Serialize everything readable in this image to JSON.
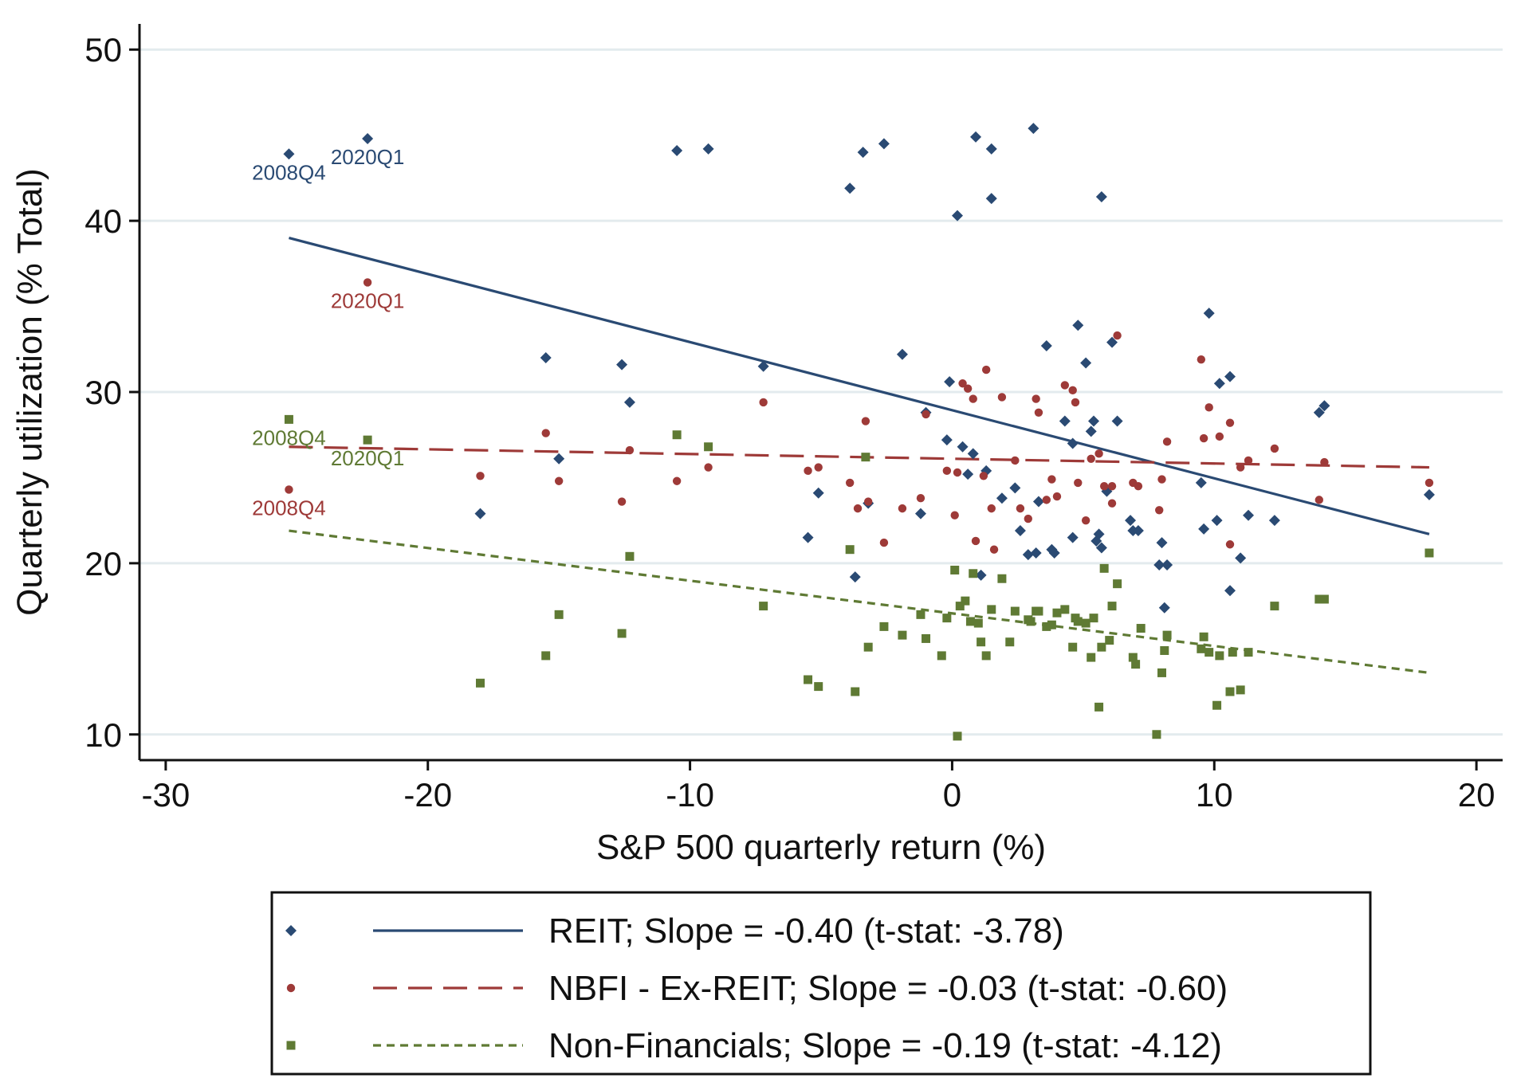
{
  "chart_data": {
    "type": "scatter",
    "xlabel": "S&P 500 quarterly return (%)",
    "ylabel": "Quarterly utilization (% Total)",
    "xlim": [
      -31,
      21
    ],
    "ylim": [
      8.5,
      51.5
    ],
    "xticks": [
      -30,
      -20,
      -10,
      0,
      10,
      20
    ],
    "yticks": [
      10,
      20,
      30,
      40,
      50
    ],
    "grid": "horizontal",
    "legend_position": "bottom",
    "series": [
      {
        "name": "REIT",
        "legend_label": "REIT; Slope = -0.40 (t-stat: -3.78)",
        "marker": "diamond",
        "color": "#2a4a73",
        "line_style": "solid",
        "fit_line": [
          [
            -25.3,
            39.0
          ],
          [
            18.2,
            21.7
          ]
        ],
        "points": [
          [
            -25.3,
            43.9
          ],
          [
            -22.3,
            44.8
          ],
          [
            -10.5,
            44.1
          ],
          [
            -9.3,
            44.2
          ],
          [
            -3.4,
            44.0
          ],
          [
            -2.6,
            44.5
          ],
          [
            0.9,
            44.9
          ],
          [
            1.5,
            44.2
          ],
          [
            3.1,
            45.4
          ],
          [
            -3.9,
            41.9
          ],
          [
            0.2,
            40.3
          ],
          [
            1.5,
            41.3
          ],
          [
            5.7,
            41.4
          ],
          [
            -15.5,
            32.0
          ],
          [
            -12.6,
            31.6
          ],
          [
            -12.3,
            29.4
          ],
          [
            -7.2,
            31.5
          ],
          [
            -1.9,
            32.2
          ],
          [
            -18.0,
            22.9
          ],
          [
            -15.0,
            26.1
          ],
          [
            -5.5,
            21.5
          ],
          [
            -5.1,
            24.1
          ],
          [
            -3.7,
            19.2
          ],
          [
            -3.2,
            23.5
          ],
          [
            -1.2,
            22.9
          ],
          [
            -1.0,
            28.8
          ],
          [
            -0.2,
            27.2
          ],
          [
            -0.1,
            30.6
          ],
          [
            0.4,
            26.8
          ],
          [
            0.6,
            25.2
          ],
          [
            0.8,
            26.4
          ],
          [
            1.1,
            19.3
          ],
          [
            1.3,
            25.4
          ],
          [
            1.9,
            23.8
          ],
          [
            2.4,
            24.4
          ],
          [
            2.6,
            21.9
          ],
          [
            2.9,
            20.5
          ],
          [
            3.2,
            20.6
          ],
          [
            3.3,
            23.6
          ],
          [
            3.6,
            32.7
          ],
          [
            3.8,
            20.8
          ],
          [
            3.9,
            20.6
          ],
          [
            4.3,
            28.3
          ],
          [
            4.6,
            27.0
          ],
          [
            4.6,
            21.5
          ],
          [
            4.8,
            33.9
          ],
          [
            5.1,
            31.7
          ],
          [
            5.3,
            27.7
          ],
          [
            5.4,
            28.3
          ],
          [
            5.5,
            21.3
          ],
          [
            5.6,
            21.7
          ],
          [
            5.7,
            20.9
          ],
          [
            5.9,
            24.2
          ],
          [
            6.1,
            32.9
          ],
          [
            6.3,
            28.3
          ],
          [
            6.8,
            22.5
          ],
          [
            6.9,
            21.9
          ],
          [
            7.1,
            21.9
          ],
          [
            7.9,
            19.9
          ],
          [
            8.0,
            21.2
          ],
          [
            8.2,
            19.9
          ],
          [
            8.1,
            17.4
          ],
          [
            9.5,
            24.7
          ],
          [
            9.6,
            22.0
          ],
          [
            9.8,
            34.6
          ],
          [
            10.1,
            22.5
          ],
          [
            10.2,
            30.5
          ],
          [
            10.6,
            30.9
          ],
          [
            10.6,
            18.4
          ],
          [
            11.0,
            20.3
          ],
          [
            11.3,
            22.8
          ],
          [
            12.3,
            22.5
          ],
          [
            14.0,
            28.8
          ],
          [
            14.2,
            29.2
          ],
          [
            18.2,
            24.0
          ]
        ]
      },
      {
        "name": "NBFI - Ex-REIT",
        "legend_label": "NBFI - Ex-REIT; Slope = -0.03 (t-stat: -0.60)",
        "marker": "circle",
        "color": "#9e3a38",
        "line_style": "dashed",
        "fit_line": [
          [
            -25.3,
            26.8
          ],
          [
            18.2,
            25.6
          ]
        ],
        "points": [
          [
            -22.3,
            36.4
          ],
          [
            -25.3,
            24.3
          ],
          [
            -18.0,
            25.1
          ],
          [
            -15.5,
            27.6
          ],
          [
            -15.0,
            24.8
          ],
          [
            -12.6,
            23.6
          ],
          [
            -12.3,
            26.6
          ],
          [
            -10.5,
            24.8
          ],
          [
            -9.3,
            25.6
          ],
          [
            -7.2,
            29.4
          ],
          [
            -5.5,
            25.4
          ],
          [
            -5.1,
            25.6
          ],
          [
            -3.9,
            24.7
          ],
          [
            -3.6,
            23.2
          ],
          [
            -3.3,
            28.3
          ],
          [
            -3.2,
            23.6
          ],
          [
            -2.6,
            21.2
          ],
          [
            -1.9,
            23.2
          ],
          [
            -1.2,
            23.8
          ],
          [
            -1.0,
            28.7
          ],
          [
            -0.2,
            25.4
          ],
          [
            0.1,
            22.8
          ],
          [
            0.2,
            25.3
          ],
          [
            0.4,
            30.5
          ],
          [
            0.6,
            30.2
          ],
          [
            0.8,
            29.6
          ],
          [
            0.9,
            21.3
          ],
          [
            1.2,
            25.1
          ],
          [
            1.3,
            31.3
          ],
          [
            1.5,
            23.2
          ],
          [
            1.6,
            20.8
          ],
          [
            1.9,
            29.7
          ],
          [
            2.4,
            26.0
          ],
          [
            2.6,
            23.2
          ],
          [
            2.9,
            22.6
          ],
          [
            3.2,
            29.6
          ],
          [
            3.3,
            28.8
          ],
          [
            3.6,
            23.7
          ],
          [
            3.8,
            24.9
          ],
          [
            4.0,
            23.9
          ],
          [
            4.3,
            30.4
          ],
          [
            4.6,
            30.1
          ],
          [
            4.7,
            29.4
          ],
          [
            4.8,
            24.7
          ],
          [
            5.1,
            22.5
          ],
          [
            5.3,
            26.1
          ],
          [
            5.6,
            26.4
          ],
          [
            5.8,
            24.5
          ],
          [
            6.1,
            24.5
          ],
          [
            6.3,
            33.3
          ],
          [
            6.1,
            23.5
          ],
          [
            6.9,
            24.7
          ],
          [
            7.1,
            24.5
          ],
          [
            7.9,
            23.1
          ],
          [
            8.0,
            24.9
          ],
          [
            8.2,
            27.1
          ],
          [
            9.5,
            31.9
          ],
          [
            9.6,
            27.3
          ],
          [
            9.8,
            29.1
          ],
          [
            10.2,
            27.4
          ],
          [
            10.6,
            28.2
          ],
          [
            10.6,
            21.1
          ],
          [
            11.0,
            25.6
          ],
          [
            11.3,
            26.0
          ],
          [
            12.3,
            26.7
          ],
          [
            14.0,
            23.7
          ],
          [
            14.2,
            25.9
          ],
          [
            18.2,
            24.7
          ]
        ]
      },
      {
        "name": "Non-Financials",
        "legend_label": "Non-Financials; Slope = -0.19 (t-stat: -4.12)",
        "marker": "square",
        "color": "#5f7a34",
        "line_style": "dotted",
        "fit_line": [
          [
            -25.3,
            21.9
          ],
          [
            18.2,
            13.6
          ]
        ],
        "points": [
          [
            -25.3,
            28.4
          ],
          [
            -22.3,
            27.2
          ],
          [
            -18.0,
            13.0
          ],
          [
            -15.5,
            14.6
          ],
          [
            -15.0,
            17.0
          ],
          [
            -12.6,
            15.9
          ],
          [
            -12.3,
            20.4
          ],
          [
            -10.5,
            27.5
          ],
          [
            -9.3,
            26.8
          ],
          [
            -7.2,
            17.5
          ],
          [
            -5.5,
            13.2
          ],
          [
            -5.1,
            12.8
          ],
          [
            -3.9,
            20.8
          ],
          [
            -3.7,
            12.5
          ],
          [
            -3.3,
            26.2
          ],
          [
            -3.2,
            15.1
          ],
          [
            -2.6,
            16.3
          ],
          [
            -1.9,
            15.8
          ],
          [
            -1.2,
            17.0
          ],
          [
            -1.0,
            15.6
          ],
          [
            -0.4,
            14.6
          ],
          [
            -0.2,
            16.8
          ],
          [
            0.1,
            19.6
          ],
          [
            0.2,
            9.9
          ],
          [
            0.3,
            17.5
          ],
          [
            0.5,
            17.8
          ],
          [
            0.7,
            16.6
          ],
          [
            0.8,
            19.4
          ],
          [
            1.0,
            16.5
          ],
          [
            1.1,
            15.4
          ],
          [
            1.3,
            14.6
          ],
          [
            1.5,
            17.3
          ],
          [
            1.9,
            19.1
          ],
          [
            2.2,
            15.4
          ],
          [
            2.4,
            17.2
          ],
          [
            2.9,
            16.7
          ],
          [
            3.0,
            16.6
          ],
          [
            3.2,
            17.2
          ],
          [
            3.3,
            17.2
          ],
          [
            3.6,
            16.3
          ],
          [
            3.8,
            16.4
          ],
          [
            4.0,
            17.1
          ],
          [
            4.3,
            17.3
          ],
          [
            4.6,
            15.1
          ],
          [
            4.7,
            16.8
          ],
          [
            4.8,
            16.6
          ],
          [
            5.1,
            16.5
          ],
          [
            5.3,
            14.5
          ],
          [
            5.4,
            16.8
          ],
          [
            5.6,
            11.6
          ],
          [
            5.7,
            15.1
          ],
          [
            5.8,
            19.7
          ],
          [
            6.0,
            15.5
          ],
          [
            6.1,
            17.5
          ],
          [
            6.3,
            18.8
          ],
          [
            6.9,
            14.5
          ],
          [
            7.0,
            14.1
          ],
          [
            7.2,
            16.2
          ],
          [
            7.8,
            10.0
          ],
          [
            8.0,
            13.6
          ],
          [
            8.1,
            14.9
          ],
          [
            8.2,
            15.8
          ],
          [
            9.5,
            15.0
          ],
          [
            9.6,
            15.7
          ],
          [
            9.8,
            14.8
          ],
          [
            10.1,
            11.7
          ],
          [
            10.2,
            14.6
          ],
          [
            10.6,
            12.5
          ],
          [
            10.7,
            14.8
          ],
          [
            11.0,
            12.6
          ],
          [
            11.3,
            14.8
          ],
          [
            12.3,
            17.5
          ],
          [
            14.0,
            17.9
          ],
          [
            14.2,
            17.9
          ],
          [
            18.2,
            20.6
          ]
        ]
      }
    ],
    "annotations": [
      {
        "text": "2008Q4",
        "x": -25.3,
        "y": 43.9,
        "series": "REIT",
        "anchor": "below"
      },
      {
        "text": "2020Q1",
        "x": -22.3,
        "y": 44.8,
        "series": "REIT",
        "anchor": "below"
      },
      {
        "text": "2020Q1",
        "x": -22.3,
        "y": 36.4,
        "series": "NBFI - Ex-REIT",
        "anchor": "below"
      },
      {
        "text": "2008Q4",
        "x": -25.3,
        "y": 24.3,
        "series": "NBFI - Ex-REIT",
        "anchor": "below"
      },
      {
        "text": "2008Q4",
        "x": -25.3,
        "y": 28.4,
        "series": "Non-Financials",
        "anchor": "below"
      },
      {
        "text": "2020Q1",
        "x": -22.3,
        "y": 27.2,
        "series": "Non-Financials",
        "anchor": "below"
      }
    ]
  }
}
